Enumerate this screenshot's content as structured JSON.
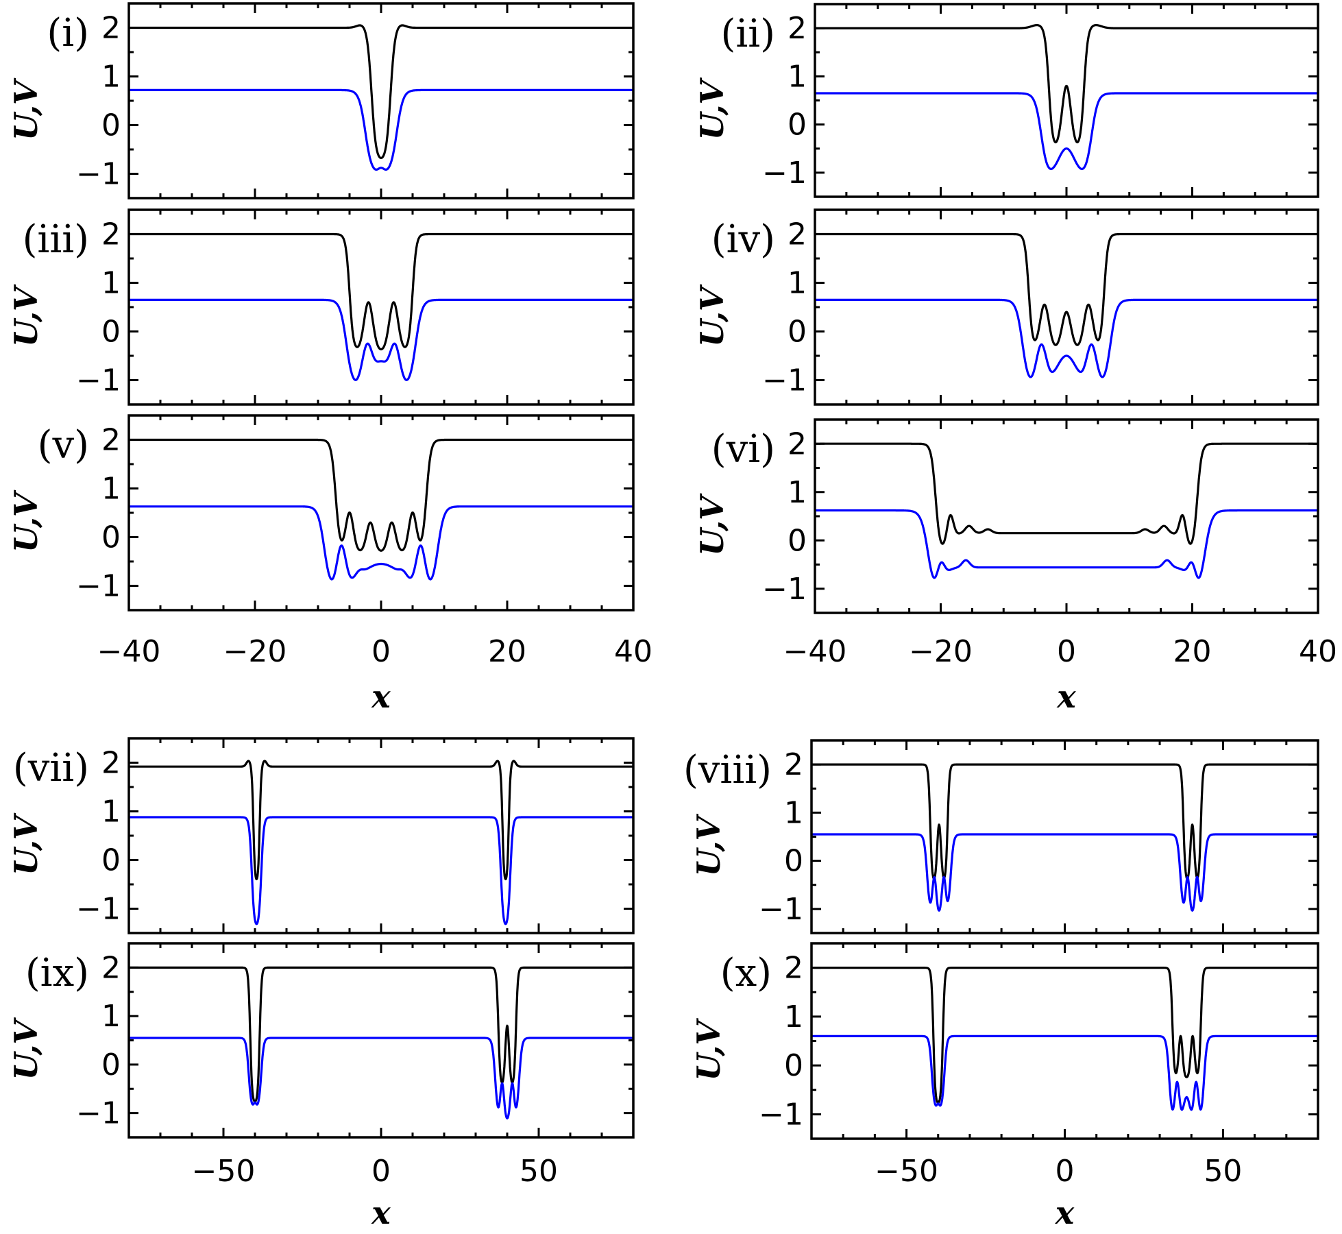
{
  "colors": {
    "U": "#000000",
    "V": "#0000ff"
  },
  "chart_data": [
    {
      "type": "line",
      "label": "(i)",
      "ylabel": "U,V",
      "xlabel": "",
      "xlim": [
        -40,
        40
      ],
      "ylim": [
        -1.5,
        2.5
      ],
      "xticks": [
        -40,
        -20,
        0,
        20,
        40
      ],
      "yticks": [
        -1,
        0,
        1,
        2
      ],
      "ytick_labels": [
        "−1",
        "0",
        "1",
        "2"
      ],
      "series": [
        {
          "name": "U",
          "base": 2,
          "components": [
            {
              "type": "box",
              "a": -1.5,
              "b": 1.5,
              "w": 0.7,
              "amp": -2.75
            },
            {
              "type": "gauss",
              "c": -3,
              "amp": 0.07,
              "s": 0.8
            },
            {
              "type": "gauss",
              "c": 3,
              "amp": 0.07,
              "s": 0.8
            }
          ]
        },
        {
          "name": "V",
          "base": 0.72,
          "components": [
            {
              "type": "box",
              "a": -2.5,
              "b": 2.5,
              "w": 1.0,
              "amp": -1.72
            },
            {
              "type": "gauss",
              "c": 0,
              "amp": 0.1,
              "s": 0.5
            }
          ]
        }
      ]
    },
    {
      "type": "line",
      "label": "(ii)",
      "ylabel": "U,V",
      "xlabel": "",
      "xlim": [
        -40,
        40
      ],
      "ylim": [
        -1.5,
        2.5
      ],
      "xticks": [
        -40,
        -20,
        0,
        20,
        40
      ],
      "yticks": [
        -1,
        0,
        1,
        2
      ],
      "ytick_labels": [
        "−1",
        "0",
        "1",
        "2"
      ],
      "series": [
        {
          "name": "U",
          "base": 2,
          "components": [
            {
              "type": "box",
              "a": -2.8,
              "b": 2.8,
              "w": 0.6,
              "amp": -2.5
            },
            {
              "type": "gauss",
              "c": 0,
              "amp": 1.3,
              "s": 0.7
            },
            {
              "type": "gauss",
              "c": -4.5,
              "amp": 0.07,
              "s": 1
            },
            {
              "type": "gauss",
              "c": 4.5,
              "amp": 0.07,
              "s": 1
            }
          ]
        },
        {
          "name": "V",
          "base": 0.65,
          "components": [
            {
              "type": "box",
              "a": -4,
              "b": 4,
              "w": 1.0,
              "amp": -1.75
            },
            {
              "type": "gauss",
              "c": 0,
              "amp": 0.6,
              "s": 1.3
            }
          ]
        }
      ]
    },
    {
      "type": "line",
      "label": "(iii)",
      "ylabel": "U,V",
      "xlabel": "",
      "xlim": [
        -40,
        40
      ],
      "ylim": [
        -1.5,
        2.5
      ],
      "xticks": [
        -40,
        -20,
        0,
        20,
        40
      ],
      "yticks": [
        -1,
        0,
        1,
        2
      ],
      "ytick_labels": [
        "−1",
        "0",
        "1",
        "2"
      ],
      "series": [
        {
          "name": "U",
          "base": 2,
          "components": [
            {
              "type": "box",
              "a": -5,
              "b": 5,
              "w": 0.6,
              "amp": -2.4
            },
            {
              "type": "gauss",
              "c": -2,
              "amp": 1.0,
              "s": 0.7
            },
            {
              "type": "gauss",
              "c": 2,
              "amp": 1.0,
              "s": 0.7
            }
          ]
        },
        {
          "name": "V",
          "base": 0.65,
          "components": [
            {
              "type": "box",
              "a": -5.5,
              "b": 5.5,
              "w": 1.0,
              "amp": -1.8
            },
            {
              "type": "gauss",
              "c": -2.2,
              "amp": 0.85,
              "s": 0.8
            },
            {
              "type": "gauss",
              "c": 2.2,
              "amp": 0.85,
              "s": 0.8
            },
            {
              "type": "gauss",
              "c": 0,
              "amp": 0.5,
              "s": 1.0
            }
          ]
        }
      ]
    },
    {
      "type": "line",
      "label": "(iv)",
      "ylabel": "U,V",
      "xlabel": "",
      "xlim": [
        -40,
        40
      ],
      "ylim": [
        -1.5,
        2.5
      ],
      "xticks": [
        -40,
        -20,
        0,
        20,
        40
      ],
      "yticks": [
        -1,
        0,
        1,
        2
      ],
      "ytick_labels": [
        "−1",
        "0",
        "1",
        "2"
      ],
      "series": [
        {
          "name": "U",
          "base": 2,
          "components": [
            {
              "type": "box",
              "a": -6,
              "b": 6,
              "w": 0.6,
              "amp": -2.35
            },
            {
              "type": "gauss",
              "c": -3.5,
              "amp": 0.9,
              "s": 0.7
            },
            {
              "type": "gauss",
              "c": 0,
              "amp": 0.75,
              "s": 0.7
            },
            {
              "type": "gauss",
              "c": 3.5,
              "amp": 0.9,
              "s": 0.7
            }
          ]
        },
        {
          "name": "V",
          "base": 0.65,
          "components": [
            {
              "type": "box",
              "a": -7,
              "b": 7,
              "w": 1.0,
              "amp": -1.8
            },
            {
              "type": "gauss",
              "c": -4,
              "amp": 0.85,
              "s": 0.8
            },
            {
              "type": "gauss",
              "c": 4,
              "amp": 0.85,
              "s": 0.8
            },
            {
              "type": "gauss",
              "c": 0,
              "amp": 0.65,
              "s": 1.6
            }
          ]
        }
      ]
    },
    {
      "type": "line",
      "label": "(v)",
      "ylabel": "U,V",
      "xlabel": "x",
      "xlim": [
        -40,
        40
      ],
      "ylim": [
        -1.5,
        2.5
      ],
      "xticks": [
        -40,
        -20,
        0,
        20,
        40
      ],
      "xtick_labels": [
        "−40",
        "−20",
        "0",
        "20",
        "40"
      ],
      "yticks": [
        -1,
        0,
        1,
        2
      ],
      "ytick_labels": [
        "−1",
        "0",
        "1",
        "2"
      ],
      "series": [
        {
          "name": "U",
          "base": 2,
          "components": [
            {
              "type": "box",
              "a": -7.2,
              "b": 7.2,
              "w": 0.7,
              "amp": -2.3
            },
            {
              "type": "gauss",
              "c": -5,
              "amp": 0.8,
              "s": 0.6
            },
            {
              "type": "gauss",
              "c": -1.7,
              "amp": 0.6,
              "s": 0.6
            },
            {
              "type": "gauss",
              "c": 1.7,
              "amp": 0.6,
              "s": 0.6
            },
            {
              "type": "gauss",
              "c": 5,
              "amp": 0.8,
              "s": 0.6
            }
          ]
        },
        {
          "name": "V",
          "base": 0.63,
          "components": [
            {
              "type": "box",
              "a": -9,
              "b": 9,
              "w": 1.0,
              "amp": -1.78
            },
            {
              "type": "gauss",
              "c": 0,
              "amp": 0.6,
              "s": 3.5
            },
            {
              "type": "gauss",
              "c": -6.3,
              "amp": 0.85,
              "s": 0.7
            },
            {
              "type": "gauss",
              "c": 6.3,
              "amp": 0.85,
              "s": 0.7
            },
            {
              "type": "gauss",
              "c": -3.5,
              "amp": 0.1,
              "s": 0.6
            },
            {
              "type": "gauss",
              "c": 3.5,
              "amp": 0.1,
              "s": 0.6
            }
          ]
        }
      ]
    },
    {
      "type": "line",
      "label": "(vi)",
      "ylabel": "U,V",
      "xlabel": "x",
      "xlim": [
        -40,
        40
      ],
      "ylim": [
        -1.5,
        2.5
      ],
      "xticks": [
        -40,
        -20,
        0,
        20,
        40
      ],
      "xtick_labels": [
        "−40",
        "−20",
        "0",
        "20",
        "40"
      ],
      "yticks": [
        -1,
        0,
        1,
        2
      ],
      "ytick_labels": [
        "−1",
        "0",
        "1",
        "2"
      ],
      "series": [
        {
          "name": "U",
          "base": 2,
          "components": [
            {
              "type": "box",
              "a": -20.8,
              "b": 20.8,
              "w": 0.7,
              "amp": -2.3
            },
            {
              "type": "box",
              "a": -19,
              "b": 19,
              "w": 1.2,
              "amp": 0.45
            },
            {
              "type": "gauss",
              "c": -18.5,
              "amp": 0.5,
              "s": 0.5
            },
            {
              "type": "gauss",
              "c": 18.5,
              "amp": 0.5,
              "s": 0.5
            },
            {
              "type": "gauss",
              "c": -15.5,
              "amp": 0.15,
              "s": 0.6
            },
            {
              "type": "gauss",
              "c": 15.5,
              "amp": 0.15,
              "s": 0.6
            },
            {
              "type": "gauss",
              "c": -12.5,
              "amp": 0.08,
              "s": 0.6
            },
            {
              "type": "gauss",
              "c": 12.5,
              "amp": 0.08,
              "s": 0.6
            }
          ]
        },
        {
          "name": "V",
          "base": 0.62,
          "components": [
            {
              "type": "box",
              "a": -22,
              "b": 22,
              "w": 1.1,
              "amp": -1.8
            },
            {
              "type": "box",
              "a": -19.5,
              "b": 19.5,
              "w": 1.0,
              "amp": 0.62
            },
            {
              "type": "gauss",
              "c": -20,
              "amp": 0.5,
              "s": 0.6
            },
            {
              "type": "gauss",
              "c": 20,
              "amp": 0.5,
              "s": 0.6
            },
            {
              "type": "gauss",
              "c": -16,
              "amp": 0.15,
              "s": 0.6
            },
            {
              "type": "gauss",
              "c": 16,
              "amp": 0.15,
              "s": 0.6
            }
          ]
        }
      ]
    },
    {
      "type": "line",
      "label": "(vii)",
      "ylabel": "U,V",
      "xlabel": "",
      "xlim": [
        -80,
        80
      ],
      "ylim": [
        -1.5,
        2.5
      ],
      "xticks": [
        -50,
        0,
        50
      ],
      "yticks": [
        -1,
        0,
        1,
        2
      ],
      "ytick_labels": [
        "−1",
        "0",
        "1",
        "2"
      ],
      "series": [
        {
          "name": "U",
          "base": 1.92,
          "components": [
            {
              "type": "box",
              "a": -40.5,
              "b": -38.5,
              "w": 0.5,
              "amp": -2.4
            },
            {
              "type": "gauss",
              "c": -42,
              "amp": 0.12,
              "s": 0.7
            },
            {
              "type": "gauss",
              "c": -37,
              "amp": 0.12,
              "s": 0.7
            },
            {
              "type": "box",
              "a": 38.5,
              "b": 40.5,
              "w": 0.5,
              "amp": -2.4
            },
            {
              "type": "gauss",
              "c": 37,
              "amp": 0.12,
              "s": 0.7
            },
            {
              "type": "gauss",
              "c": 42,
              "amp": 0.12,
              "s": 0.7
            }
          ]
        },
        {
          "name": "V",
          "base": 0.88,
          "components": [
            {
              "type": "box",
              "a": -41,
              "b": -38,
              "w": 0.8,
              "amp": -2.3
            },
            {
              "type": "box",
              "a": 38,
              "b": 41,
              "w": 0.8,
              "amp": -2.3
            }
          ]
        }
      ]
    },
    {
      "type": "line",
      "label": "(viii)",
      "ylabel": "U,V",
      "xlabel": "",
      "xlim": [
        -80,
        80
      ],
      "ylim": [
        -1.5,
        2.5
      ],
      "xticks": [
        -50,
        0,
        50
      ],
      "yticks": [
        -1,
        0,
        1,
        2
      ],
      "ytick_labels": [
        "−1",
        "0",
        "1",
        "2"
      ],
      "series": [
        {
          "name": "U",
          "base": 2,
          "components": [
            {
              "type": "box",
              "a": -42.5,
              "b": -37,
              "w": 0.6,
              "amp": -2.45
            },
            {
              "type": "gauss",
              "c": -39.7,
              "amp": 1.2,
              "s": 0.6
            },
            {
              "type": "box",
              "a": 37.5,
              "b": 43,
              "w": 0.6,
              "amp": -2.45
            },
            {
              "type": "gauss",
              "c": 40.3,
              "amp": 1.2,
              "s": 0.6
            }
          ]
        },
        {
          "name": "V",
          "base": 0.55,
          "components": [
            {
              "type": "box",
              "a": -43.5,
              "b": -36,
              "w": 0.9,
              "amp": -1.65
            },
            {
              "type": "gauss",
              "c": -41.2,
              "amp": 0.75,
              "s": 0.6
            },
            {
              "type": "gauss",
              "c": -38.2,
              "amp": 0.75,
              "s": 0.6
            },
            {
              "type": "box",
              "a": 36.5,
              "b": 44,
              "w": 0.9,
              "amp": -1.65
            },
            {
              "type": "gauss",
              "c": 38.8,
              "amp": 0.75,
              "s": 0.6
            },
            {
              "type": "gauss",
              "c": 41.8,
              "amp": 0.75,
              "s": 0.6
            }
          ]
        }
      ]
    },
    {
      "type": "line",
      "label": "(ix)",
      "ylabel": "U,V",
      "xlabel": "x",
      "xlim": [
        -80,
        80
      ],
      "ylim": [
        -1.5,
        2.5
      ],
      "xticks": [
        -50,
        0,
        50
      ],
      "xtick_labels": [
        "−50",
        "0",
        "50"
      ],
      "yticks": [
        -1,
        0,
        1,
        2
      ],
      "ytick_labels": [
        "−1",
        "0",
        "1",
        "2"
      ],
      "series": [
        {
          "name": "U",
          "base": 2,
          "components": [
            {
              "type": "box",
              "a": -41.5,
              "b": -38.5,
              "w": 0.6,
              "amp": -2.8
            },
            {
              "type": "box",
              "a": 37.2,
              "b": 42.8,
              "w": 0.6,
              "amp": -2.45
            },
            {
              "type": "gauss",
              "c": 40,
              "amp": 1.25,
              "s": 0.6
            }
          ]
        },
        {
          "name": "V",
          "base": 0.55,
          "components": [
            {
              "type": "box",
              "a": -42,
              "b": -38,
              "w": 0.8,
              "amp": -1.45
            },
            {
              "type": "gauss",
              "c": -40,
              "amp": 0.1,
              "s": 0.4
            },
            {
              "type": "box",
              "a": 36.2,
              "b": 43.8,
              "w": 0.9,
              "amp": -1.7
            },
            {
              "type": "gauss",
              "c": 38.4,
              "amp": 0.75,
              "s": 0.6
            },
            {
              "type": "gauss",
              "c": 41.6,
              "amp": 0.75,
              "s": 0.6
            }
          ]
        }
      ]
    },
    {
      "type": "line",
      "label": "(x)",
      "ylabel": "U,V",
      "xlabel": "x",
      "xlim": [
        -80,
        80
      ],
      "ylim": [
        -1.5,
        2.5
      ],
      "xticks": [
        -50,
        0,
        50
      ],
      "xtick_labels": [
        "−50",
        "0",
        "50"
      ],
      "yticks": [
        -1,
        0,
        1,
        2
      ],
      "ytick_labels": [
        "−1",
        "0",
        "1",
        "2"
      ],
      "series": [
        {
          "name": "U",
          "base": 2,
          "components": [
            {
              "type": "box",
              "a": -41.5,
              "b": -38.5,
              "w": 0.6,
              "amp": -2.8
            },
            {
              "type": "box",
              "a": 34,
              "b": 43,
              "w": 0.6,
              "amp": -2.25
            },
            {
              "type": "gauss",
              "c": 36.6,
              "amp": 0.85,
              "s": 0.6
            },
            {
              "type": "gauss",
              "c": 40.4,
              "amp": 0.85,
              "s": 0.6
            }
          ]
        },
        {
          "name": "V",
          "base": 0.6,
          "components": [
            {
              "type": "box",
              "a": -42,
              "b": -38,
              "w": 0.8,
              "amp": -1.5
            },
            {
              "type": "gauss",
              "c": -40,
              "amp": 0.1,
              "s": 0.4
            },
            {
              "type": "box",
              "a": 33,
              "b": 44,
              "w": 0.9,
              "amp": -1.75
            },
            {
              "type": "gauss",
              "c": 35.5,
              "amp": 0.8,
              "s": 0.7
            },
            {
              "type": "gauss",
              "c": 41.5,
              "amp": 0.8,
              "s": 0.7
            },
            {
              "type": "gauss",
              "c": 38.5,
              "amp": 0.5,
              "s": 1.0
            }
          ]
        }
      ]
    }
  ]
}
